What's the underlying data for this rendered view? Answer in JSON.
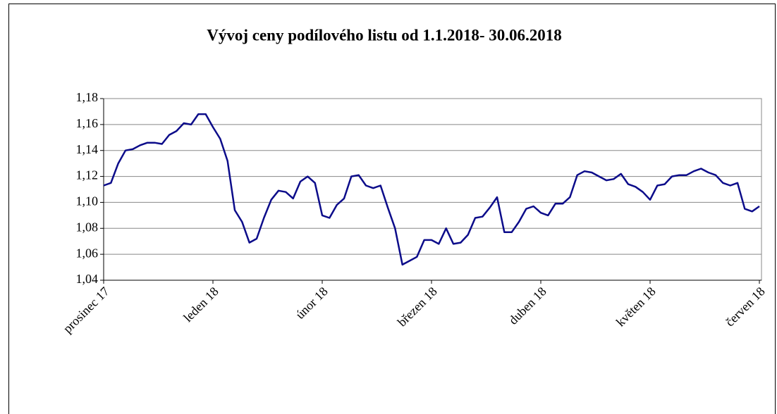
{
  "chart_data": {
    "type": "line",
    "title": "Vývoj ceny podílového listu od 1.1.2018- 30.06.2018",
    "categories": [
      "prosinec 17",
      null,
      null,
      null,
      null,
      null,
      null,
      null,
      null,
      null,
      null,
      null,
      null,
      null,
      null,
      "leden 18",
      null,
      null,
      null,
      null,
      null,
      null,
      null,
      null,
      null,
      null,
      null,
      null,
      null,
      null,
      "únor 18",
      null,
      null,
      null,
      null,
      null,
      null,
      null,
      null,
      null,
      null,
      null,
      null,
      null,
      null,
      "březen 18",
      null,
      null,
      null,
      null,
      null,
      null,
      null,
      null,
      null,
      null,
      null,
      null,
      null,
      null,
      "duben 18",
      null,
      null,
      null,
      null,
      null,
      null,
      null,
      null,
      null,
      null,
      null,
      null,
      null,
      null,
      "květen 18",
      null,
      null,
      null,
      null,
      null,
      null,
      null,
      null,
      null,
      null,
      null,
      null,
      null,
      null,
      "červen 18"
    ],
    "series": [
      {
        "color": "#0c0c8a",
        "values": [
          1.113,
          1.115,
          1.13,
          1.14,
          1.141,
          1.144,
          1.146,
          1.146,
          1.145,
          1.152,
          1.155,
          1.161,
          1.16,
          1.168,
          1.168,
          1.158,
          1.149,
          1.132,
          1.094,
          1.085,
          1.069,
          1.072,
          1.088,
          1.102,
          1.109,
          1.108,
          1.103,
          1.116,
          1.12,
          1.115,
          1.09,
          1.088,
          1.098,
          1.103,
          1.12,
          1.121,
          1.113,
          1.111,
          1.113,
          1.096,
          1.08,
          1.052,
          1.055,
          1.058,
          1.071,
          1.071,
          1.068,
          1.08,
          1.068,
          1.069,
          1.075,
          1.088,
          1.089,
          1.096,
          1.104,
          1.077,
          1.077,
          1.085,
          1.095,
          1.097,
          1.092,
          1.09,
          1.099,
          1.099,
          1.104,
          1.121,
          1.124,
          1.123,
          1.12,
          1.117,
          1.118,
          1.122,
          1.114,
          1.112,
          1.108,
          1.102,
          1.113,
          1.114,
          1.12,
          1.121,
          1.121,
          1.124,
          1.126,
          1.123,
          1.121,
          1.115,
          1.113,
          1.115,
          1.095,
          1.093,
          1.097
        ]
      }
    ],
    "ylim": [
      1.04,
      1.18
    ],
    "yticks": [
      {
        "value": 1.04,
        "label": "1,04"
      },
      {
        "value": 1.06,
        "label": "1,06"
      },
      {
        "value": 1.08,
        "label": "1,08"
      },
      {
        "value": 1.1,
        "label": "1,10"
      },
      {
        "value": 1.12,
        "label": "1,12"
      },
      {
        "value": 1.14,
        "label": "1,14"
      },
      {
        "value": 1.16,
        "label": "1,16"
      },
      {
        "value": 1.18,
        "label": "1,18"
      }
    ],
    "grid": true
  }
}
